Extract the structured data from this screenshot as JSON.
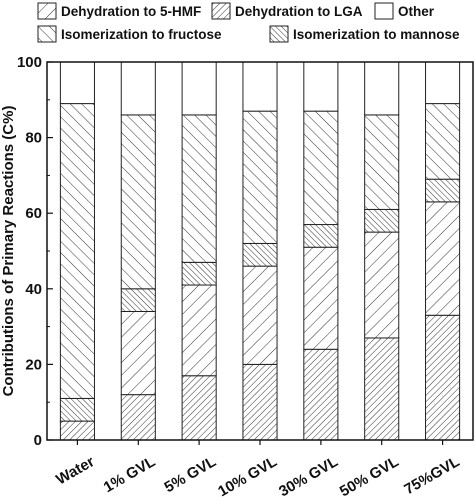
{
  "chart_data": {
    "type": "bar",
    "stacked": true,
    "ylabel": "Contributions of Primary Reactions (C%)",
    "ylim": [
      0,
      100
    ],
    "yticks": [
      0,
      20,
      40,
      60,
      80,
      100
    ],
    "grid": false,
    "legend_position": "top",
    "categories": [
      "Water",
      "1% GVL",
      "5% GVL",
      "10% GVL",
      "30% GVL",
      "50% GVL",
      "75%GVL"
    ],
    "series": [
      {
        "name": "Dehydration to LGA",
        "pattern": "dense-diagonal",
        "values": [
          5,
          12,
          17,
          20,
          24,
          27,
          33
        ]
      },
      {
        "name": "Dehydration to 5-HMF",
        "pattern": "diagonal",
        "values": [
          0,
          22,
          24,
          26,
          27,
          28,
          30
        ]
      },
      {
        "name": "Isomerization to mannose",
        "pattern": "cross-diagonal",
        "values": [
          6,
          6,
          6,
          6,
          6,
          6,
          6
        ]
      },
      {
        "name": "Isomerization to fructose",
        "pattern": "back-diagonal",
        "values": [
          78,
          46,
          39,
          35,
          30,
          25,
          20
        ]
      },
      {
        "name": "Other",
        "pattern": "none",
        "values": [
          11,
          14,
          14,
          13,
          13,
          14,
          11
        ]
      }
    ]
  },
  "legend": [
    {
      "label": "Dehydration to 5-HMF",
      "pattern": "diagonal"
    },
    {
      "label": "Dehydration to LGA",
      "pattern": "dense-diagonal"
    },
    {
      "label": "Other",
      "pattern": "none"
    },
    {
      "label": "Isomerization to fructose",
      "pattern": "back-diagonal"
    },
    {
      "label": "Isomerization to mannose",
      "pattern": "cross-diagonal"
    }
  ]
}
